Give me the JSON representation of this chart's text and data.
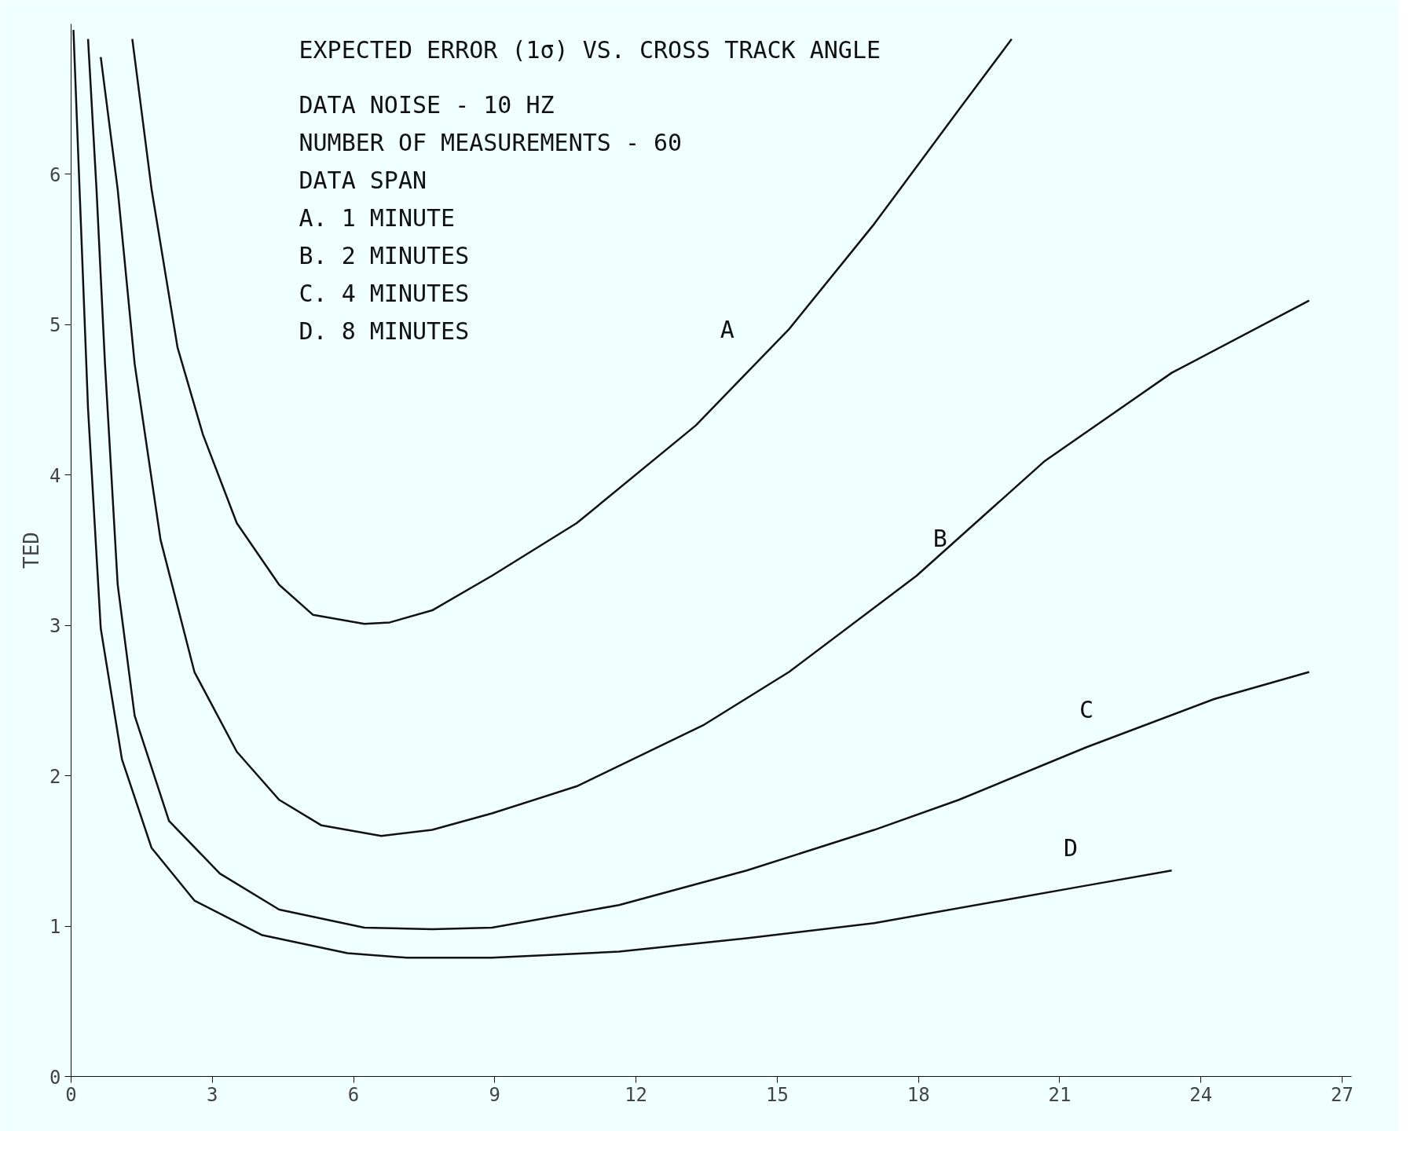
{
  "chart_data": {
    "type": "line",
    "title": "EXPECTED ERROR (1σ) VS. CROSS TRACK ANGLE",
    "ylabel": "TED",
    "xlim": [
      0,
      27.2
    ],
    "ylim": [
      0,
      7
    ],
    "xticks": [
      0,
      3,
      6,
      9,
      12,
      15,
      18,
      21,
      24,
      27
    ],
    "yticks": [
      0,
      1,
      2,
      3,
      4,
      5,
      6
    ],
    "grid": false,
    "marker": "none",
    "line_style": "solid",
    "annotations": [
      "DATA NOISE - 10 HZ",
      "NUMBER OF MEASUREMENTS - 60",
      "DATA SPAN",
      "A. 1 MINUTE",
      "B. 2 MINUTES",
      "C. 4 MINUTES",
      "D. 8 MINUTES"
    ],
    "series": [
      {
        "name": "A",
        "color": "#111111",
        "x": [
          1.3,
          1.71,
          2.26,
          2.8,
          3.52,
          4.42,
          5.14,
          6.23,
          6.77,
          7.67,
          8.94,
          10.74,
          13.27,
          15.25,
          17.06,
          18.86,
          19.98
        ],
        "values": [
          6.9,
          5.9,
          4.85,
          4.27,
          3.68,
          3.27,
          3.07,
          3.01,
          3.02,
          3.1,
          3.33,
          3.68,
          4.33,
          4.97,
          5.67,
          6.43,
          6.9
        ]
      },
      {
        "name": "B",
        "color": "#111111",
        "x": [
          0.63,
          0.99,
          1.35,
          1.9,
          2.62,
          3.52,
          4.42,
          5.32,
          6.59,
          7.67,
          8.94,
          10.74,
          13.45,
          15.25,
          17.96,
          20.67,
          23.38,
          26.3
        ],
        "values": [
          6.78,
          5.9,
          4.74,
          3.57,
          2.69,
          2.16,
          1.84,
          1.67,
          1.6,
          1.64,
          1.75,
          1.93,
          2.34,
          2.69,
          3.33,
          4.09,
          4.68,
          5.16
        ]
      },
      {
        "name": "C",
        "color": "#111111",
        "x": [
          0.36,
          0.54,
          0.72,
          0.99,
          1.35,
          2.08,
          3.16,
          4.42,
          6.23,
          7.67,
          8.94,
          11.64,
          14.35,
          17.06,
          18.86,
          21.57,
          24.28,
          26.3
        ],
        "values": [
          6.9,
          5.9,
          4.74,
          3.27,
          2.4,
          1.7,
          1.35,
          1.11,
          0.99,
          0.98,
          0.99,
          1.14,
          1.37,
          1.64,
          1.84,
          2.19,
          2.51,
          2.69
        ]
      },
      {
        "name": "D",
        "color": "#111111",
        "x": [
          0.05,
          0.18,
          0.36,
          0.63,
          1.08,
          1.71,
          2.62,
          4.06,
          5.87,
          7.13,
          8.94,
          11.64,
          14.35,
          17.06,
          19.77,
          21.57,
          23.38
        ],
        "values": [
          6.96,
          5.9,
          4.44,
          2.98,
          2.11,
          1.52,
          1.17,
          0.94,
          0.82,
          0.79,
          0.79,
          0.83,
          0.92,
          1.02,
          1.17,
          1.27,
          1.37
        ]
      }
    ]
  }
}
